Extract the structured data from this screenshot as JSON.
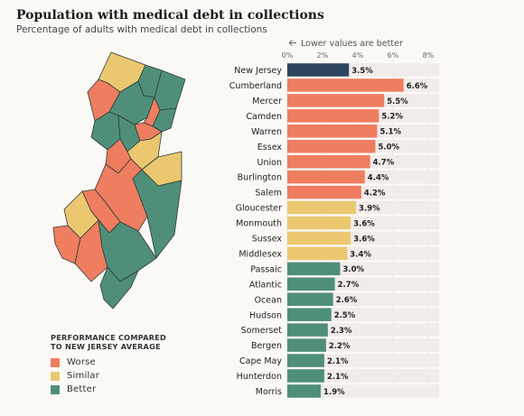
{
  "title": "Population with medical debt in collections",
  "subtitle": "Percentage of adults with medical debt in collections",
  "direction_note": "Lower values are better",
  "colors": {
    "reference": "#2d4660",
    "worse": "#ef7d60",
    "similar": "#ebc870",
    "better": "#4f8f79",
    "track": "#f1ebea",
    "map_stroke": "#2d3b35"
  },
  "legend": {
    "title_line1": "PERFORMANCE COMPARED",
    "title_line2": "TO NEW JERSEY AVERAGE",
    "items": [
      {
        "label": "Worse",
        "color": "#ef7d60"
      },
      {
        "label": "Similar",
        "color": "#ebc870"
      },
      {
        "label": "Better",
        "color": "#4f8f79"
      }
    ]
  },
  "chart_data": {
    "type": "bar",
    "orientation": "horizontal",
    "title": "Population with medical debt in collections",
    "subtitle": "Percentage of adults with medical debt in collections",
    "xlim": [
      0,
      8
    ],
    "ticks": [
      "0%",
      "2%",
      "4%",
      "6%",
      "8%"
    ],
    "tick_values": [
      0,
      2,
      4,
      6,
      8
    ],
    "annotation": "Lower values are better",
    "categories": [
      "New Jersey",
      "Cumberland",
      "Mercer",
      "Camden",
      "Warren",
      "Essex",
      "Union",
      "Burlington",
      "Salem",
      "Gloucester",
      "Monmouth",
      "Sussex",
      "Middlesex",
      "Passaic",
      "Atlantic",
      "Ocean",
      "Hudson",
      "Somerset",
      "Bergen",
      "Cape May",
      "Hunterdon",
      "Morris"
    ],
    "values": [
      3.5,
      6.6,
      5.5,
      5.2,
      5.1,
      5.0,
      4.7,
      4.4,
      4.2,
      3.9,
      3.6,
      3.6,
      3.4,
      3.0,
      2.7,
      2.6,
      2.5,
      2.3,
      2.2,
      2.1,
      2.1,
      1.9
    ],
    "labels": [
      "3.5%",
      "6.6%",
      "5.5%",
      "5.2%",
      "5.1%",
      "5.0%",
      "4.7%",
      "4.4%",
      "4.2%",
      "3.9%",
      "3.6%",
      "3.6%",
      "3.4%",
      "3.0%",
      "2.7%",
      "2.6%",
      "2.5%",
      "2.3%",
      "2.2%",
      "2.1%",
      "2.1%",
      "1.9%"
    ],
    "performance": [
      "reference",
      "worse",
      "worse",
      "worse",
      "worse",
      "worse",
      "worse",
      "worse",
      "worse",
      "similar",
      "similar",
      "similar",
      "similar",
      "better",
      "better",
      "better",
      "better",
      "better",
      "better",
      "better",
      "better",
      "better"
    ]
  }
}
